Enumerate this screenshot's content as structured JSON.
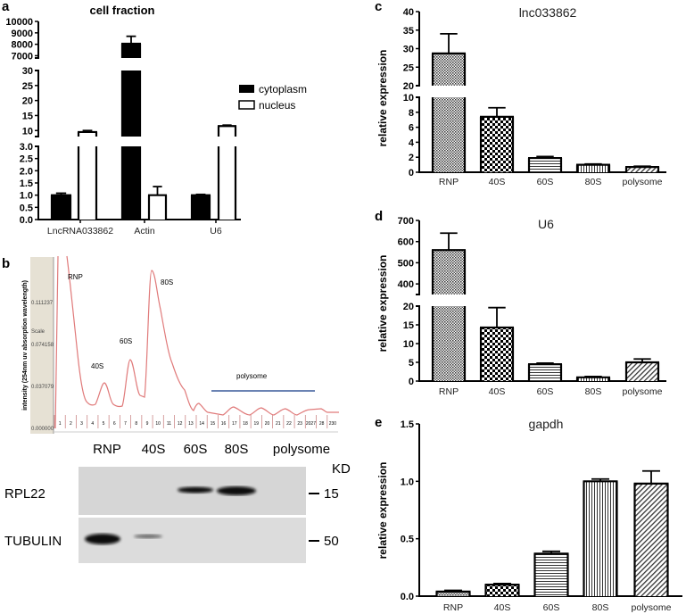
{
  "panel_letters": {
    "a": "a",
    "b": "b",
    "c": "c",
    "d": "d",
    "e": "e"
  },
  "chart_data": [
    {
      "id": "a",
      "type": "bar",
      "title": "cell fraction",
      "categories": [
        "LncRNA033862",
        "Actin",
        "U6"
      ],
      "series": [
        {
          "name": "cytoplasm",
          "color": "#000000",
          "values": [
            1.0,
            8050,
            1.0
          ],
          "errors": [
            0.08,
            650,
            0.03
          ]
        },
        {
          "name": "nucleus",
          "color": "#ffffff",
          "values": [
            9.5,
            1.0,
            11.5
          ],
          "errors": [
            0.5,
            0.35,
            0.3
          ]
        }
      ],
      "y_segments": [
        [
          0,
          3
        ],
        [
          8,
          30
        ],
        [
          6800,
          10000
        ]
      ],
      "y_ticks": [
        [
          "0.0",
          "0.5",
          "1.0",
          "1.5",
          "2.0",
          "2.5",
          "3.0"
        ],
        [
          "10",
          "15",
          "20",
          "25",
          "30"
        ],
        [
          "7000",
          "8000",
          "9000",
          "10000"
        ]
      ],
      "legend": "right",
      "xlabel": "",
      "ylabel": ""
    },
    {
      "id": "b",
      "type": "line",
      "title": "",
      "ylabel": "intensity (254nm uv absorption wavelength)",
      "y_tick_labels": [
        "0.111237",
        "0.074158",
        "0.037079",
        "0.000000"
      ],
      "scale_label": "Scale",
      "peak_labels": [
        "RNP",
        "40S",
        "60S",
        "80S"
      ],
      "range_label": "polysome",
      "fraction_numbers": [
        "1",
        "2",
        "3",
        "4",
        "5",
        "6",
        "7",
        "8",
        "9",
        "10",
        "11",
        "12",
        "13",
        "14",
        "15",
        "16",
        "17",
        "18",
        "19",
        "20",
        "21",
        "22",
        "23",
        "2027",
        "28",
        "230"
      ],
      "line_color": "#e07a7a",
      "range_color": "#3a5a9a"
    },
    {
      "id": "c",
      "type": "bar",
      "title": "lnc033862",
      "categories": [
        "RNP",
        "40S",
        "60S",
        "80S",
        "polysome"
      ],
      "values": [
        28.7,
        7.4,
        1.9,
        1.0,
        0.7
      ],
      "errors": [
        5.3,
        1.2,
        0.2,
        0.1,
        0.1
      ],
      "y_segments": [
        [
          0,
          10
        ],
        [
          20,
          40
        ]
      ],
      "y_ticks": [
        [
          "0",
          "2",
          "4",
          "6",
          "8",
          "10"
        ],
        [
          "20",
          "25",
          "30",
          "35",
          "40"
        ]
      ],
      "ylabel": "relative expression"
    },
    {
      "id": "d",
      "type": "bar",
      "title": "U6",
      "categories": [
        "RNP",
        "40S",
        "60S",
        "80S",
        "polysome"
      ],
      "values": [
        560,
        14.3,
        4.5,
        1.0,
        5.0
      ],
      "errors": [
        80,
        5.3,
        0.3,
        0.2,
        0.9
      ],
      "y_segments": [
        [
          0,
          20
        ],
        [
          350,
          700
        ]
      ],
      "y_ticks": [
        [
          "0",
          "5",
          "10",
          "15",
          "20"
        ],
        [
          "400",
          "500",
          "600",
          "700"
        ]
      ],
      "ylabel": "relative expression"
    },
    {
      "id": "e",
      "type": "bar",
      "title": "gapdh",
      "categories": [
        "RNP",
        "40S",
        "60S",
        "80S",
        "polysome"
      ],
      "values": [
        0.04,
        0.1,
        0.37,
        1.0,
        0.98
      ],
      "errors": [
        0.01,
        0.01,
        0.02,
        0.02,
        0.11
      ],
      "y_segments": [
        [
          0,
          1.5
        ]
      ],
      "y_ticks": [
        [
          "0.0",
          "0.5",
          "1.0",
          "1.5"
        ]
      ],
      "ylabel": "relative expression"
    }
  ],
  "western_blot": {
    "lanes": [
      "RNP",
      "40S",
      "60S",
      "80S",
      "polysome"
    ],
    "unit": "KD",
    "rows": [
      {
        "label": "RPL22",
        "marker": "15"
      },
      {
        "label": "TUBULIN",
        "marker": "50"
      }
    ]
  }
}
